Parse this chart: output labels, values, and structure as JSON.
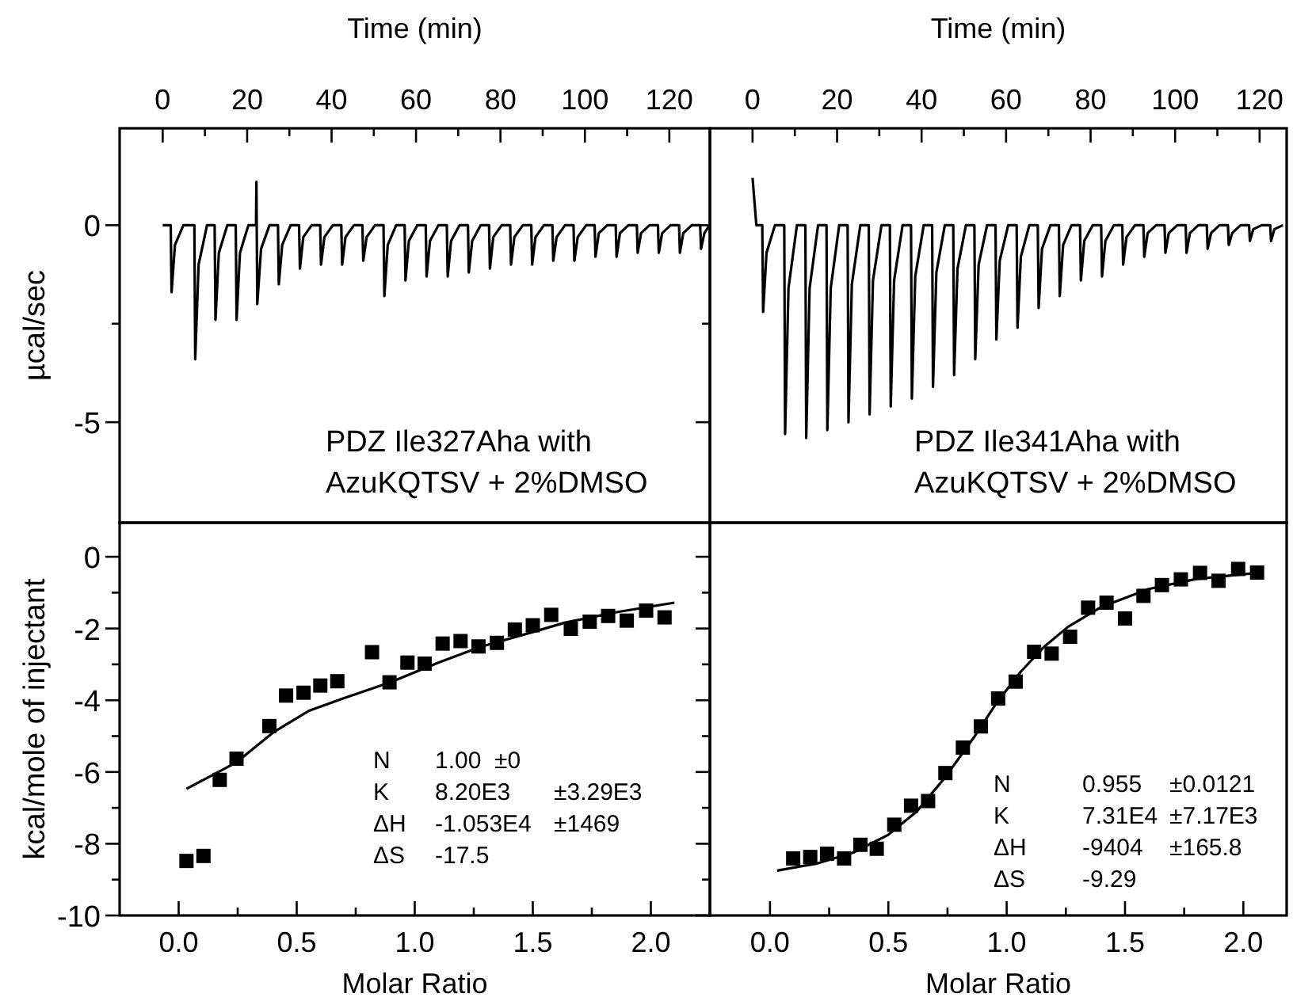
{
  "chart_data": [
    {
      "type": "line",
      "xlabel": "Time (min)",
      "ylabel": "µcal/sec",
      "xlim": [
        -10.2,
        129.6
      ],
      "xticks": [
        0,
        {
          "value": 10,
          "label": null
        },
        20,
        {
          "value": 30,
          "label": null
        },
        40,
        {
          "value": 50,
          "label": null
        },
        60,
        {
          "value": 70,
          "label": null
        },
        80,
        {
          "value": 90,
          "label": null
        },
        100,
        {
          "value": 110,
          "label": null
        },
        120
      ],
      "ylim": [
        -7.55,
        2.46
      ],
      "yticks": [
        0,
        {
          "value": -2.5,
          "label": null
        },
        -5
      ],
      "annotations": [
        "PDZ Ile327Aha with",
        "AzuKQTSV + 2%DMSO"
      ],
      "series": [
        {
          "color": "#000000",
          "x": [
            0,
            1.9,
            2.1,
            2.9,
            4.9,
            7.5,
            7.7,
            8.5,
            10.5,
            12.3,
            12.5,
            13.3,
            15.3,
            17.3,
            17.5,
            18.3,
            20.3,
            22.1,
            22.2,
            22.4,
            23.3,
            25.3,
            27.3,
            27.5,
            28.3,
            30.3,
            32.3,
            32.5,
            33.3,
            35.3,
            37.3,
            37.5,
            38.3,
            40.3,
            42.3,
            42.5,
            43.3,
            45.3,
            47.3,
            47.5,
            48.3,
            50.3,
            52.3,
            52.5,
            53.3,
            55.3,
            57.3,
            57.5,
            58.3,
            60.3,
            62.3,
            62.5,
            63.3,
            65.3,
            67.3,
            67.5,
            68.3,
            70.3,
            72.3,
            72.5,
            73.3,
            75.3,
            77.3,
            77.5,
            78.3,
            80.3,
            82.3,
            82.5,
            83.3,
            85.3,
            87.3,
            87.5,
            88.3,
            90.3,
            92.3,
            92.5,
            93.3,
            95.3,
            97.3,
            97.5,
            98.3,
            100.3,
            102.3,
            102.5,
            103.3,
            105.3,
            107.3,
            107.5,
            108.3,
            110.3,
            112.3,
            112.5,
            113.3,
            115.3,
            117.3,
            117.5,
            118.3,
            120.3,
            122.3,
            122.5,
            123.3,
            125.3,
            127.3,
            127.5,
            128.3,
            129.5
          ],
          "values": [
            0,
            0,
            -1.7,
            -0.5,
            0,
            0,
            -3.4,
            -1.0,
            0,
            0,
            -2.4,
            -0.7,
            0,
            0,
            -2.4,
            -0.7,
            0,
            0,
            1.1,
            -2.0,
            -0.6,
            0,
            0,
            -1.5,
            -0.5,
            0,
            0,
            -1.1,
            -0.3,
            0,
            0,
            -1.0,
            -0.3,
            0,
            0,
            -1.0,
            -0.3,
            0,
            0,
            -0.9,
            -0.3,
            0,
            0,
            -1.8,
            -0.5,
            0,
            0,
            -1.4,
            -0.4,
            0,
            0,
            -1.3,
            -0.4,
            0,
            0,
            -1.3,
            -0.4,
            0,
            0,
            -1.2,
            -0.4,
            0,
            0,
            -1.1,
            -0.3,
            0,
            0,
            -1.0,
            -0.3,
            0,
            0,
            -1.0,
            -0.3,
            0,
            0,
            -0.9,
            -0.3,
            0,
            0,
            -0.9,
            -0.3,
            0,
            0,
            -0.8,
            -0.2,
            0,
            0,
            -0.8,
            -0.2,
            0,
            0,
            -0.7,
            -0.2,
            0,
            0,
            -0.7,
            -0.2,
            0,
            0,
            -0.7,
            -0.2,
            0,
            0,
            -0.6,
            -0.2,
            0
          ]
        }
      ]
    },
    {
      "type": "line",
      "xlabel": "Time (min)",
      "xlim": [
        -10.1,
        126.4
      ],
      "xticks": [
        0,
        {
          "value": 10,
          "label": null
        },
        20,
        {
          "value": 30,
          "label": null
        },
        40,
        {
          "value": 50,
          "label": null
        },
        60,
        {
          "value": 70,
          "label": null
        },
        80,
        {
          "value": 90,
          "label": null
        },
        100,
        {
          "value": 110,
          "label": null
        },
        120
      ],
      "ylim": [
        -7.55,
        2.46
      ],
      "yticks": [
        0,
        {
          "value": -2.5,
          "label": null
        },
        -5
      ],
      "tick_labels": "x",
      "annotations": [
        "PDZ Ile341Aha with",
        "AzuKQTSV + 2%DMSO"
      ],
      "series": [
        {
          "color": "#000000",
          "x": [
            0,
            0.9,
            2.3,
            2.5,
            3.3,
            5.3,
            7.5,
            7.7,
            8.5,
            10.5,
            12.5,
            12.7,
            13.5,
            15.5,
            17.5,
            17.7,
            18.5,
            20.5,
            22.5,
            22.7,
            23.5,
            25.5,
            27.5,
            27.7,
            28.5,
            30.5,
            32.5,
            32.7,
            33.5,
            35.5,
            37.5,
            37.7,
            38.5,
            40.5,
            42.5,
            42.7,
            43.5,
            45.5,
            47.5,
            47.7,
            48.5,
            50.5,
            52.5,
            52.7,
            53.5,
            55.5,
            57.5,
            57.7,
            58.5,
            60.5,
            62.5,
            62.7,
            63.5,
            65.5,
            67.5,
            67.7,
            68.5,
            70.5,
            72.5,
            72.7,
            73.5,
            75.5,
            77.5,
            77.7,
            78.5,
            80.5,
            82.5,
            82.7,
            83.5,
            85.5,
            87.5,
            87.7,
            88.5,
            90.5,
            92.5,
            92.7,
            93.5,
            95.5,
            97.5,
            97.7,
            98.5,
            100.5,
            102.5,
            102.7,
            103.5,
            105.5,
            107.5,
            107.7,
            108.5,
            110.5,
            112.5,
            112.7,
            113.5,
            115.5,
            117.5,
            117.7,
            118.5,
            120.5,
            122.5,
            122.7,
            123.5,
            125.5
          ],
          "values": [
            1.2,
            0,
            0,
            -2.2,
            -0.7,
            0,
            0,
            -5.3,
            -1.6,
            0,
            0,
            -5.4,
            -1.6,
            0,
            0,
            -5.2,
            -1.6,
            0,
            0,
            -5.0,
            -1.5,
            0,
            0,
            -4.8,
            -1.4,
            0,
            0,
            -4.6,
            -1.4,
            0,
            0,
            -4.4,
            -1.3,
            0,
            0,
            -4.1,
            -1.2,
            0,
            0,
            -3.8,
            -1.1,
            0,
            0,
            -3.4,
            -1.0,
            0,
            0,
            -2.9,
            -0.9,
            0,
            0,
            -2.6,
            -0.8,
            0,
            0,
            -2.1,
            -0.6,
            0,
            0,
            -1.8,
            -0.5,
            0,
            0,
            -1.4,
            -0.4,
            0,
            0,
            -1.3,
            -0.4,
            0,
            0,
            -1.0,
            -0.3,
            0,
            0,
            -0.8,
            -0.2,
            0,
            0,
            -0.7,
            -0.2,
            0,
            0,
            -0.7,
            -0.2,
            0,
            0,
            -0.6,
            -0.2,
            0,
            0,
            -0.5,
            -0.2,
            0,
            0,
            -0.4,
            -0.1,
            0,
            0,
            -0.4,
            -0.1,
            0
          ]
        }
      ]
    },
    {
      "type": "scatter",
      "xlabel": "Molar Ratio",
      "ylabel": "kcal/mole of injectant",
      "xlim": [
        -0.25,
        2.25
      ],
      "xticks": [
        {
          "value": 0,
          "label": "0.0"
        },
        {
          "value": 0.25,
          "label": null
        },
        {
          "value": 0.5,
          "label": "0.5"
        },
        {
          "value": 0.75,
          "label": null
        },
        {
          "value": 1,
          "label": "1.0"
        },
        {
          "value": 1.25,
          "label": null
        },
        {
          "value": 1.5,
          "label": "1.5"
        },
        {
          "value": 1.75,
          "label": null
        },
        {
          "value": 2,
          "label": "2.0"
        }
      ],
      "ylim": [
        -10,
        0.95
      ],
      "yticks": [
        0,
        {
          "value": -1,
          "label": null
        },
        -2,
        {
          "value": -3,
          "label": null
        },
        -4,
        {
          "value": -5,
          "label": null
        },
        -6,
        {
          "value": -7,
          "label": null
        },
        -8,
        {
          "value": -9,
          "label": null
        },
        -10
      ],
      "annotations": [
        "N\t1.00  ±0",
        "K\t8.20E3\t±3.29E3",
        "ΔH\t-1.053E4\t±1469",
        "ΔS\t-17.5"
      ],
      "series": [
        {
          "color": "#000000",
          "marker": "square",
          "x": [
            0.033,
            0.105,
            0.174,
            0.245,
            0.384,
            0.455,
            0.529,
            0.6,
            0.672,
            0.819,
            0.893,
            0.969,
            1.042,
            1.118,
            1.194,
            1.27,
            1.348,
            1.424,
            1.5,
            1.578,
            1.661,
            1.741,
            1.819,
            1.898,
            1.98,
            2.058
          ],
          "values": [
            -8.48,
            -8.34,
            -6.22,
            -5.63,
            -4.72,
            -3.87,
            -3.79,
            -3.59,
            -3.47,
            -2.66,
            -3.5,
            -2.95,
            -2.98,
            -2.42,
            -2.35,
            -2.5,
            -2.4,
            -2.03,
            -1.91,
            -1.62,
            -2.01,
            -1.81,
            -1.65,
            -1.78,
            -1.5,
            -1.69
          ]
        },
        {
          "type": "line",
          "color": "#000000",
          "x": [
            0.033,
            0.245,
            0.4,
            0.55,
            0.696,
            0.897,
            1.1,
            1.279,
            1.5,
            1.634,
            1.85,
            2.1
          ],
          "values": [
            -6.47,
            -5.73,
            -4.9,
            -4.3,
            -3.95,
            -3.5,
            -2.95,
            -2.51,
            -2.1,
            -1.84,
            -1.55,
            -1.28
          ]
        }
      ]
    },
    {
      "type": "scatter",
      "xlabel": "Molar Ratio",
      "xlim": [
        -0.254,
        2.183
      ],
      "xticks": [
        {
          "value": 0,
          "label": "0.0"
        },
        {
          "value": 0.25,
          "label": null
        },
        {
          "value": 0.5,
          "label": "0.5"
        },
        {
          "value": 0.75,
          "label": null
        },
        {
          "value": 1,
          "label": "1.0"
        },
        {
          "value": 1.25,
          "label": null
        },
        {
          "value": 1.5,
          "label": "1.5"
        },
        {
          "value": 1.75,
          "label": null
        },
        {
          "value": 2,
          "label": "2.0"
        }
      ],
      "ylim": [
        -10,
        0.95
      ],
      "yticks": [
        0,
        {
          "value": -1,
          "label": null
        },
        -2,
        {
          "value": -3,
          "label": null
        },
        -4,
        {
          "value": -5,
          "label": null
        },
        -6,
        {
          "value": -7,
          "label": null
        },
        -8,
        {
          "value": -9,
          "label": null
        },
        -10
      ],
      "tick_labels": "x",
      "annotations": [
        "N\t0.955\t±0.0121",
        "K\t7.31E4\t±7.17E3",
        "ΔH\t-9404\t±165.8",
        "ΔS\t-9.29"
      ],
      "series": [
        {
          "color": "#000000",
          "marker": "square",
          "x": [
            0.098,
            0.17,
            0.241,
            0.313,
            0.382,
            0.451,
            0.525,
            0.596,
            0.668,
            0.741,
            0.815,
            0.891,
            0.964,
            1.038,
            1.116,
            1.19,
            1.268,
            1.344,
            1.422,
            1.5,
            1.578,
            1.656,
            1.736,
            1.817,
            1.895,
            1.978,
            2.058
          ],
          "values": [
            -8.41,
            -8.37,
            -8.28,
            -8.41,
            -8.03,
            -8.14,
            -7.47,
            -6.94,
            -6.81,
            -6.03,
            -5.32,
            -4.73,
            -3.95,
            -3.48,
            -2.65,
            -2.7,
            -2.23,
            -1.42,
            -1.28,
            -1.72,
            -1.09,
            -0.79,
            -0.63,
            -0.45,
            -0.67,
            -0.34,
            -0.44
          ]
        },
        {
          "type": "line",
          "color": "#000000",
          "x": [
            0.03,
            0.2,
            0.35,
            0.5,
            0.62,
            0.74,
            0.86,
            0.96,
            1.06,
            1.16,
            1.26,
            1.4,
            1.6,
            1.8,
            2.06
          ],
          "values": [
            -8.75,
            -8.55,
            -8.25,
            -7.75,
            -7.1,
            -6.15,
            -5.05,
            -4.05,
            -3.2,
            -2.5,
            -1.95,
            -1.4,
            -0.9,
            -0.62,
            -0.45
          ]
        }
      ]
    }
  ]
}
